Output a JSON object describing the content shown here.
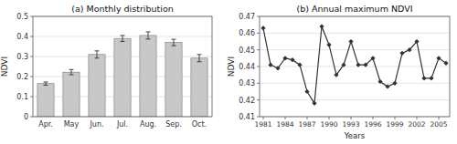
{
  "chart_data": [
    {
      "type": "bar",
      "title": "(a) Monthly distribution",
      "categories": [
        "Apr.",
        "May",
        "Jun.",
        "Jul.",
        "Aug.",
        "Sep.",
        "Oct."
      ],
      "values": [
        0.165,
        0.222,
        0.31,
        0.39,
        0.405,
        0.37,
        0.292
      ],
      "errors": [
        0.008,
        0.013,
        0.018,
        0.015,
        0.018,
        0.016,
        0.018
      ],
      "color": "#c8c8c8",
      "ylabel": "NDVI",
      "ylim": [
        0,
        0.5
      ],
      "yticks": [
        0,
        0.1,
        0.2,
        0.3,
        0.4,
        0.5
      ],
      "grid": true
    },
    {
      "type": "line",
      "title": "(b) Annual maximum NDVI",
      "x": [
        1981,
        1982,
        1983,
        1984,
        1985,
        1986,
        1987,
        1988,
        1989,
        1990,
        1991,
        1992,
        1993,
        1994,
        1995,
        1996,
        1997,
        1998,
        1999,
        2000,
        2001,
        2002,
        2003,
        2004,
        2005,
        2006
      ],
      "values": [
        0.463,
        0.441,
        0.439,
        0.445,
        0.444,
        0.441,
        0.425,
        0.418,
        0.464,
        0.453,
        0.435,
        0.441,
        0.455,
        0.441,
        0.441,
        0.445,
        0.431,
        0.428,
        0.43,
        0.448,
        0.45,
        0.455,
        0.433,
        0.433,
        0.445,
        0.442
      ],
      "color": "#333333",
      "marker": "diamond",
      "xlabel": "Years",
      "ylabel": "NDVI",
      "xlim": [
        1980.5,
        2006.5
      ],
      "xticks": [
        1981,
        1984,
        1987,
        1990,
        1993,
        1996,
        1999,
        2002,
        2005
      ],
      "ylim": [
        0.41,
        0.47
      ],
      "yticks": [
        0.41,
        0.42,
        0.43,
        0.44,
        0.45,
        0.46,
        0.47
      ],
      "grid": true
    }
  ]
}
